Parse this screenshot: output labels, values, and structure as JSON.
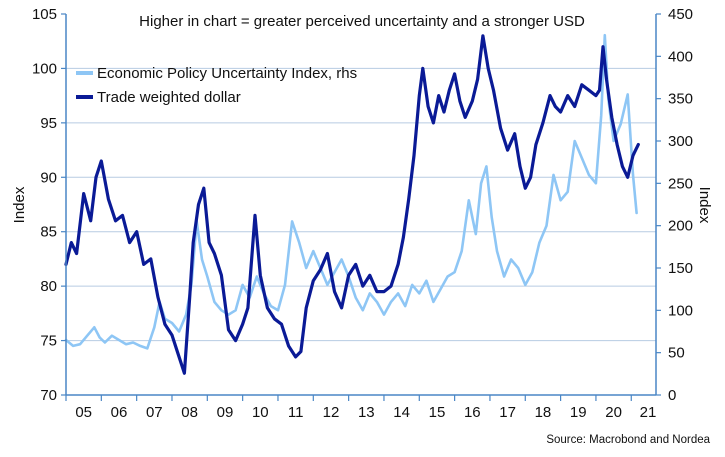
{
  "chart_data": {
    "type": "line",
    "annotation": "Higher in chart = greater perceived uncertainty and a stronger USD",
    "source": "Source: Macrobond and Nordea",
    "ylabel_left": "Index",
    "ylabel_right": "Index",
    "ylim_left": [
      70,
      105
    ],
    "ylim_right": [
      0,
      450
    ],
    "xlim": [
      2005,
      2021.7
    ],
    "yticks_left": [
      "70",
      "75",
      "80",
      "85",
      "90",
      "95",
      "100",
      "105"
    ],
    "yticks_right": [
      "0",
      "50",
      "100",
      "150",
      "200",
      "250",
      "300",
      "350",
      "400",
      "450"
    ],
    "xticks": [
      "05",
      "06",
      "07",
      "08",
      "09",
      "10",
      "11",
      "12",
      "13",
      "14",
      "15",
      "16",
      "17",
      "18",
      "19",
      "20",
      "21"
    ],
    "legend_position": "top-left",
    "colors": {
      "epu": "#8ec6f5",
      "twd": "#0a1a96",
      "axis": "#4a86c5",
      "grid": "#b7cbe2"
    },
    "series": [
      {
        "name": "Economic Policy Uncertainty Index, rhs",
        "axis": "right",
        "x": [
          2005.0,
          2005.2,
          2005.4,
          2005.6,
          2005.8,
          2005.95,
          2006.1,
          2006.3,
          2006.5,
          2006.7,
          2006.9,
          2007.1,
          2007.3,
          2007.5,
          2007.65,
          2007.8,
          2008.0,
          2008.2,
          2008.4,
          2008.55,
          2008.7,
          2008.85,
          2009.0,
          2009.2,
          2009.4,
          2009.6,
          2009.8,
          2010.0,
          2010.2,
          2010.4,
          2010.6,
          2010.8,
          2011.0,
          2011.2,
          2011.4,
          2011.6,
          2011.8,
          2012.0,
          2012.2,
          2012.4,
          2012.6,
          2012.8,
          2013.0,
          2013.2,
          2013.4,
          2013.6,
          2013.8,
          2014.0,
          2014.2,
          2014.4,
          2014.6,
          2014.8,
          2015.0,
          2015.2,
          2015.4,
          2015.6,
          2015.8,
          2016.0,
          2016.2,
          2016.4,
          2016.6,
          2016.75,
          2016.9,
          2017.05,
          2017.2,
          2017.4,
          2017.6,
          2017.8,
          2018.0,
          2018.2,
          2018.4,
          2018.6,
          2018.8,
          2019.0,
          2019.2,
          2019.4,
          2019.6,
          2019.8,
          2020.0,
          2020.15,
          2020.25,
          2020.35,
          2020.5,
          2020.7,
          2020.9,
          2021.05,
          2021.15
        ],
        "values": [
          65,
          58,
          60,
          70,
          80,
          68,
          62,
          70,
          65,
          60,
          62,
          58,
          55,
          80,
          110,
          90,
          85,
          75,
          95,
          130,
          205,
          160,
          140,
          110,
          100,
          95,
          100,
          130,
          115,
          140,
          120,
          105,
          100,
          130,
          205,
          180,
          150,
          170,
          150,
          130,
          145,
          160,
          140,
          115,
          100,
          120,
          110,
          95,
          110,
          120,
          105,
          130,
          120,
          135,
          110,
          125,
          140,
          145,
          170,
          230,
          190,
          250,
          270,
          210,
          170,
          140,
          160,
          150,
          130,
          145,
          180,
          200,
          260,
          230,
          240,
          300,
          280,
          260,
          250,
          330,
          425,
          350,
          300,
          320,
          355,
          260,
          215
        ]
      },
      {
        "name": "Trade weighted dollar",
        "axis": "left",
        "x": [
          2005.0,
          2005.15,
          2005.3,
          2005.5,
          2005.7,
          2005.85,
          2006.0,
          2006.2,
          2006.4,
          2006.6,
          2006.8,
          2007.0,
          2007.2,
          2007.4,
          2007.6,
          2007.8,
          2008.0,
          2008.15,
          2008.35,
          2008.5,
          2008.6,
          2008.75,
          2008.9,
          2009.05,
          2009.2,
          2009.4,
          2009.6,
          2009.8,
          2010.0,
          2010.15,
          2010.35,
          2010.5,
          2010.7,
          2010.9,
          2011.1,
          2011.3,
          2011.5,
          2011.65,
          2011.8,
          2012.0,
          2012.2,
          2012.4,
          2012.6,
          2012.8,
          2013.0,
          2013.2,
          2013.4,
          2013.6,
          2013.8,
          2014.0,
          2014.2,
          2014.4,
          2014.55,
          2014.7,
          2014.85,
          2015.0,
          2015.1,
          2015.25,
          2015.4,
          2015.55,
          2015.7,
          2015.85,
          2016.0,
          2016.15,
          2016.3,
          2016.5,
          2016.65,
          2016.8,
          2016.95,
          2017.1,
          2017.3,
          2017.5,
          2017.7,
          2017.85,
          2018.0,
          2018.15,
          2018.3,
          2018.5,
          2018.7,
          2018.85,
          2019.0,
          2019.2,
          2019.4,
          2019.6,
          2019.8,
          2020.0,
          2020.1,
          2020.2,
          2020.3,
          2020.45,
          2020.6,
          2020.75,
          2020.9,
          2021.05,
          2021.2
        ],
        "values": [
          82.0,
          84.0,
          83.0,
          88.5,
          86.0,
          90.0,
          91.5,
          88.0,
          86.0,
          86.5,
          84.0,
          85.0,
          82.0,
          82.5,
          79.0,
          76.5,
          75.5,
          74.0,
          72.0,
          79.0,
          84.0,
          87.5,
          89.0,
          84.0,
          83.0,
          81.0,
          76.0,
          75.0,
          76.5,
          78.0,
          86.5,
          81.0,
          78.0,
          77.0,
          76.5,
          74.5,
          73.5,
          74.0,
          78.0,
          80.5,
          81.5,
          83.0,
          79.5,
          78.0,
          81.0,
          82.0,
          80.0,
          81.0,
          79.5,
          79.5,
          80.0,
          82.0,
          84.5,
          88.0,
          92.0,
          97.5,
          100.0,
          96.5,
          95.0,
          97.5,
          96.0,
          98.0,
          99.5,
          97.0,
          95.5,
          97.0,
          99.0,
          103.0,
          100.0,
          98.0,
          94.5,
          92.5,
          94.0,
          91.0,
          89.0,
          90.0,
          93.0,
          95.0,
          97.5,
          96.5,
          96.0,
          97.5,
          96.5,
          98.5,
          98.0,
          97.5,
          98.0,
          102.0,
          99.0,
          95.5,
          93.0,
          91.0,
          90.0,
          92.0,
          93.0
        ]
      }
    ]
  }
}
